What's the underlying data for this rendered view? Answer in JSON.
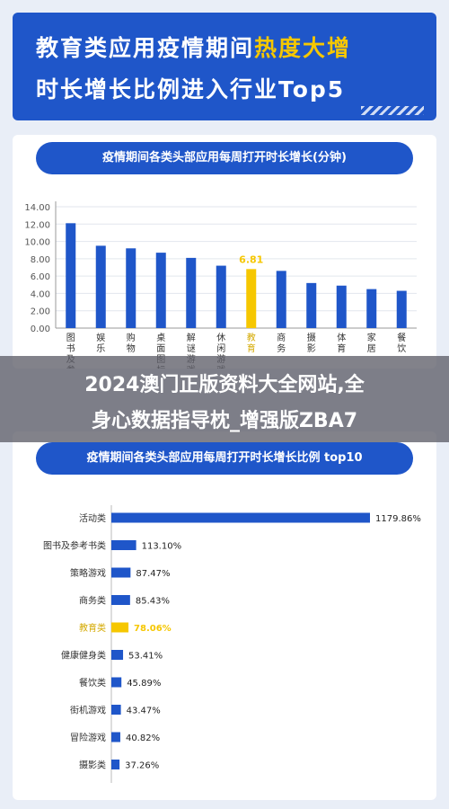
{
  "header": {
    "title_line1_a": "教育类应用疫情期间",
    "title_line1_b": "热度大增",
    "title_line2": "时长增长比例进入行业Top5"
  },
  "overlay": {
    "line1": "2024澳门正版资料大全网站,全",
    "line2": "身心数据指导枕_增强版ZBA7"
  },
  "colors": {
    "brand": "#1f56c9",
    "highlight": "#f6c700"
  },
  "chart_data": [
    {
      "type": "bar",
      "title": "疫情期间各类头部应用每周打开时长增长(分钟)",
      "categories": [
        "图书及参考",
        "娱乐",
        "购物",
        "桌面图标",
        "解谜游戏",
        "休闲游戏",
        "教育",
        "商务",
        "摄影",
        "体育",
        "家居",
        "餐饮"
      ],
      "values": [
        12.1,
        9.5,
        9.2,
        8.7,
        8.1,
        7.2,
        6.81,
        6.6,
        5.2,
        4.9,
        4.5,
        4.3
      ],
      "highlight_index": 6,
      "data_labels": {
        "6": "6.81"
      },
      "yticks": [
        "0.00",
        "2.00",
        "4.00",
        "6.00",
        "8.00",
        "10.00",
        "12.00",
        "14.00"
      ],
      "ylim": [
        0,
        14
      ],
      "grid": true
    },
    {
      "type": "bar",
      "orientation": "horizontal",
      "title": "疫情期间各类头部应用每周打开时长增长比例 top10",
      "categories": [
        "活动类",
        "图书及参考书类",
        "策略游戏",
        "商务类",
        "教育类",
        "健康健身类",
        "餐饮类",
        "街机游戏",
        "冒险游戏",
        "摄影类"
      ],
      "values": [
        1179.86,
        113.1,
        87.47,
        85.43,
        78.06,
        53.41,
        45.89,
        43.47,
        40.82,
        37.26
      ],
      "labels": [
        "1179.86%",
        "113.10%",
        "87.47%",
        "85.43%",
        "78.06%",
        "53.41%",
        "45.89%",
        "43.47%",
        "40.82%",
        "37.26%"
      ],
      "highlight_index": 4
    }
  ]
}
